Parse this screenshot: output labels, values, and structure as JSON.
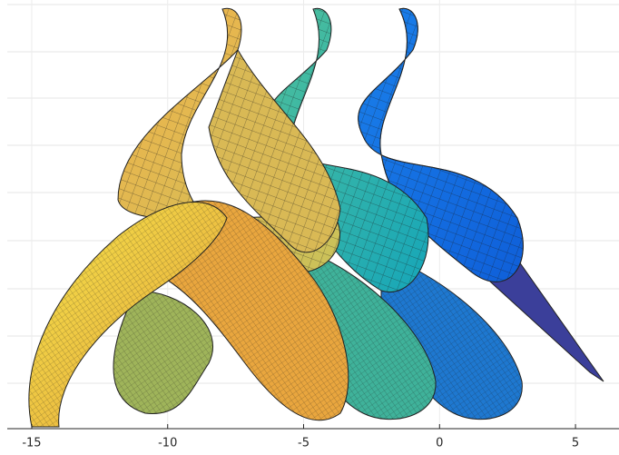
{
  "chart_data": {
    "type": "surface",
    "xlim": [
      -15.9,
      6.6
    ],
    "xticks": [
      -15,
      -10,
      -5,
      0,
      5
    ],
    "grid": true
  }
}
